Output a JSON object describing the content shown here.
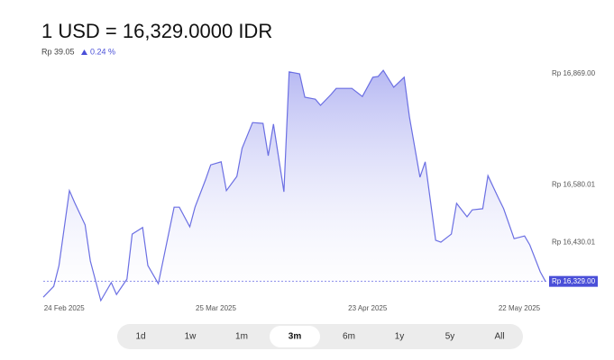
{
  "chart_data": {
    "type": "area",
    "title": "1 USD = 16,329.0000 IDR",
    "change": "Rp 39.05",
    "change_percent": "0.24 %",
    "color": "#6b6fe3",
    "fill_color": "#b3b5f2",
    "grid": false,
    "x": [
      "2025-02-20",
      "2025-02-22",
      "2025-02-23",
      "2025-02-25",
      "2025-02-26",
      "2025-02-28",
      "2025-03-01",
      "2025-03-03",
      "2025-03-05",
      "2025-03-06",
      "2025-03-08",
      "2025-03-09",
      "2025-03-11",
      "2025-03-12",
      "2025-03-14",
      "2025-03-15",
      "2025-03-17",
      "2025-03-18",
      "2025-03-20",
      "2025-03-21",
      "2025-03-23",
      "2025-03-24",
      "2025-03-26",
      "2025-03-27",
      "2025-03-29",
      "2025-03-30",
      "2025-04-01",
      "2025-04-03",
      "2025-04-04",
      "2025-04-05",
      "2025-04-07",
      "2025-04-08",
      "2025-04-10",
      "2025-04-11",
      "2025-04-13",
      "2025-04-14",
      "2025-04-16",
      "2025-04-17",
      "2025-04-19",
      "2025-04-20",
      "2025-04-22",
      "2025-04-24",
      "2025-04-25",
      "2025-04-26",
      "2025-04-28",
      "2025-04-30",
      "2025-05-01",
      "2025-05-03",
      "2025-05-04",
      "2025-05-06",
      "2025-05-07",
      "2025-05-09",
      "2025-05-10",
      "2025-05-12",
      "2025-05-13",
      "2025-05-15",
      "2025-05-16",
      "2025-05-18",
      "2025-05-19",
      "2025-05-21",
      "2025-05-23",
      "2025-05-24",
      "2025-05-26",
      "2025-05-27"
    ],
    "values": [
      16288,
      16316,
      16370,
      16565,
      16534,
      16476,
      16382,
      16279,
      16326,
      16295,
      16335,
      16452,
      16469,
      16370,
      16323,
      16389,
      16522,
      16522,
      16471,
      16522,
      16593,
      16632,
      16640,
      16565,
      16602,
      16675,
      16742,
      16740,
      16656,
      16738,
      16562,
      16874,
      16869,
      16808,
      16803,
      16787,
      16815,
      16831,
      16831,
      16831,
      16810,
      16860,
      16862,
      16878,
      16834,
      16860,
      16757,
      16600,
      16640,
      16436,
      16431,
      16452,
      16532,
      16497,
      16515,
      16518,
      16604,
      16546,
      16518,
      16440,
      16447,
      16424,
      16354,
      16329
    ],
    "xlim": [
      "2025-02-20",
      "2025-05-27"
    ],
    "xticks": [
      {
        "value": "2025-02-24",
        "label": "24 Feb 2025"
      },
      {
        "value": "2025-03-25",
        "label": "25 Mar 2025"
      },
      {
        "value": "2025-04-23",
        "label": "23 Apr 2025"
      },
      {
        "value": "2025-05-22",
        "label": "22 May 2025"
      }
    ],
    "ylim": [
      16265,
      16897
    ],
    "yticks": [
      {
        "value": 16869,
        "label": "Rp 16,869.00"
      },
      {
        "value": 16580.01,
        "label": "Rp 16,580.01"
      },
      {
        "value": 16430.01,
        "label": "Rp 16,430.01"
      }
    ],
    "current": {
      "value": 16329,
      "label": "Rp 16,329.00"
    }
  },
  "range_selector": {
    "options": [
      "1d",
      "1w",
      "1m",
      "3m",
      "6m",
      "1y",
      "5y",
      "All"
    ],
    "selected": 3
  }
}
